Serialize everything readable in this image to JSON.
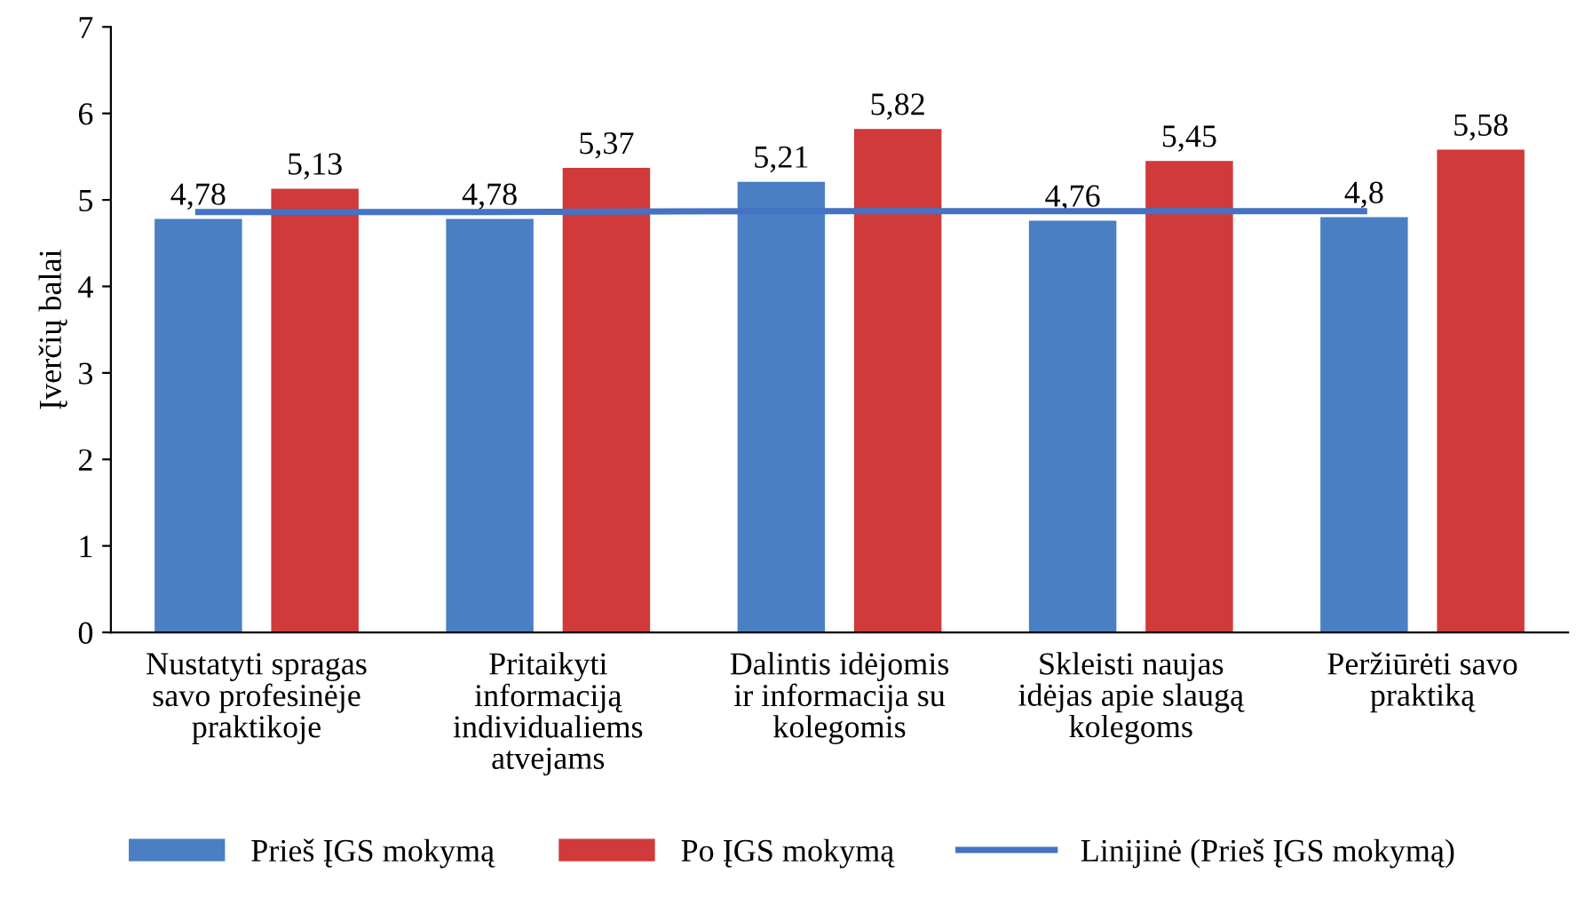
{
  "chart_data": {
    "type": "bar",
    "ylabel": "Įverčių balai",
    "categories": [
      "Nustatyti spragas savo profesinėje praktikoje",
      "Pritaikyti informaciją individualiems atvejams",
      "Dalintis idėjomis ir informacija su kolegomis",
      "Skleisti naujas idėjas apie slaugą kolegoms",
      "Peržiūrėti savo praktiką"
    ],
    "series": [
      {
        "name": "Prieš ĮGS mokymą",
        "color": "#4a7fc4",
        "values": [
          4.78,
          4.78,
          5.21,
          4.76,
          4.8
        ],
        "value_labels": [
          "4,78",
          "4,78",
          "5,21",
          "4,76",
          "4,8"
        ]
      },
      {
        "name": "Po ĮGS mokymą",
        "color": "#d03a3a",
        "values": [
          5.13,
          5.37,
          5.82,
          5.45,
          5.58
        ],
        "value_labels": [
          "5,13",
          "5,37",
          "5,82",
          "5,45",
          "5,58"
        ]
      },
      {
        "name": "Linijinė (Prieš ĮGS mokymą)",
        "type": "line",
        "color": "#4472c4",
        "values": [
          4.86,
          4.86,
          4.87,
          4.87,
          4.87
        ]
      }
    ],
    "ylim": [
      0,
      7
    ],
    "yticks": [
      0,
      1,
      2,
      3,
      4,
      5,
      6,
      7
    ],
    "grid": false,
    "legend": "bottom"
  }
}
